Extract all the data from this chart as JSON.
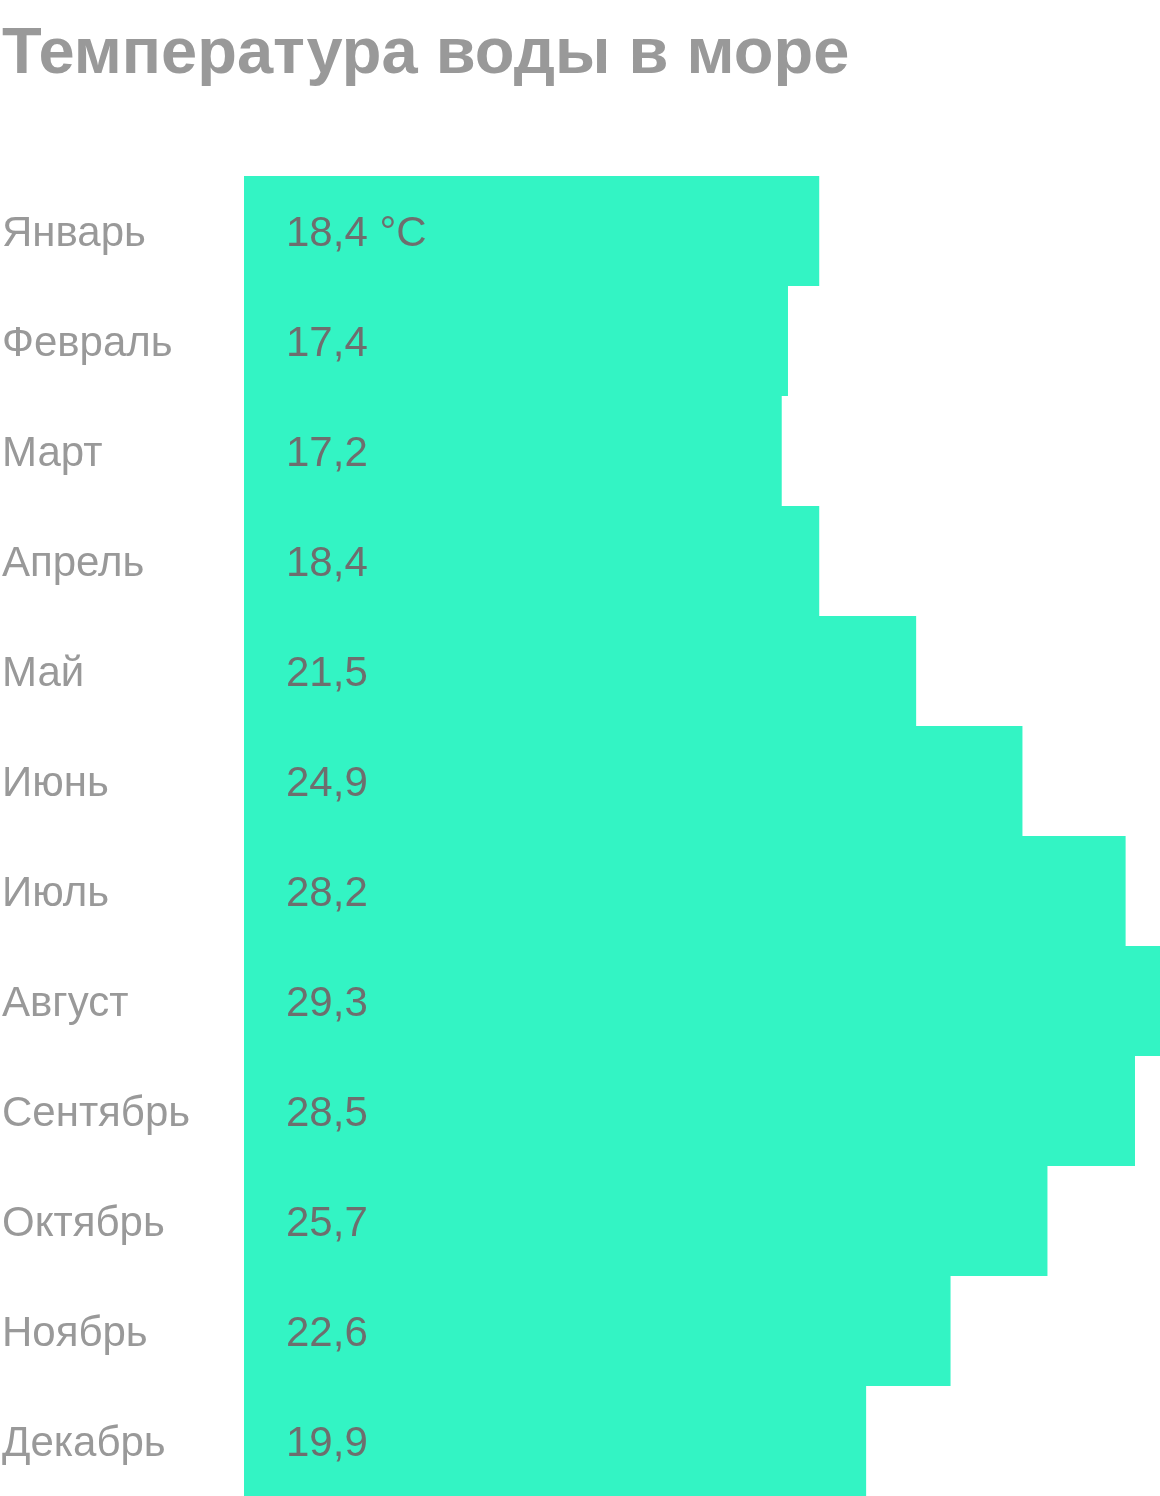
{
  "chart_data": {
    "type": "bar",
    "orientation": "horizontal",
    "title": "Температура воды в море",
    "categories": [
      "Январь",
      "Февраль",
      "Март",
      "Апрель",
      "Май",
      "Июнь",
      "Июль",
      "Август",
      "Сентябрь",
      "Октябрь",
      "Ноябрь",
      "Декабрь"
    ],
    "values": [
      18.4,
      17.4,
      17.2,
      18.4,
      21.5,
      24.9,
      28.2,
      29.3,
      28.5,
      25.7,
      22.6,
      19.9
    ],
    "value_labels": [
      "18,4 °C",
      "17,4",
      "17,2",
      "18,4",
      "21,5",
      "24,9",
      "28,2",
      "29,3",
      "28,5",
      "25,7",
      "22,6",
      "19,9"
    ],
    "color": "#33f4c4",
    "tick_labels": "y"
  }
}
